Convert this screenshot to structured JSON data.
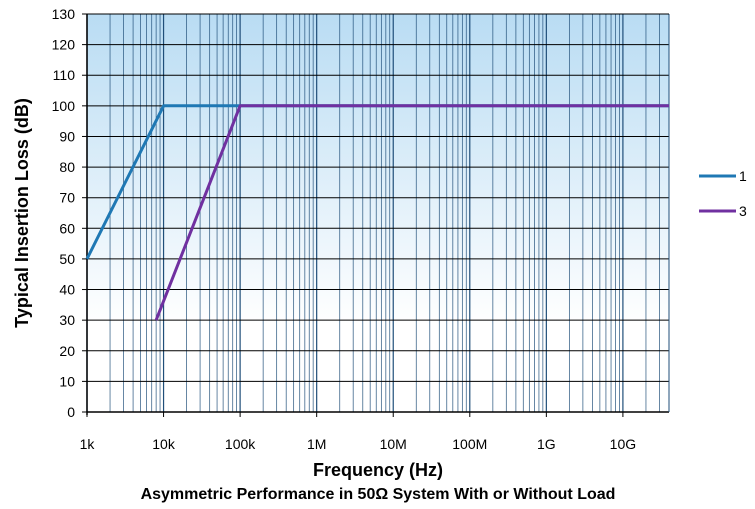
{
  "chart_data": {
    "type": "line",
    "xlabel": "Frequency (Hz)",
    "ylabel": "Typical Insertion Loss (dB)",
    "subtitle": "Asymmetric  Performance in 50Ω System  With or Without Load",
    "x_scale": "log",
    "xlim": [
      1000,
      40000000000
    ],
    "ylim": [
      0,
      130
    ],
    "x_ticks": [
      {
        "value": 1000,
        "label": "1k"
      },
      {
        "value": 10000,
        "label": "10k"
      },
      {
        "value": 100000,
        "label": "100k"
      },
      {
        "value": 1000000,
        "label": "1M"
      },
      {
        "value": 10000000,
        "label": "10M"
      },
      {
        "value": 100000000,
        "label": "100M"
      },
      {
        "value": 1000000000,
        "label": "1G"
      },
      {
        "value": 10000000000,
        "label": "10G"
      }
    ],
    "y_ticks": [
      0,
      10,
      20,
      30,
      40,
      50,
      60,
      70,
      80,
      90,
      100,
      110,
      120,
      130
    ],
    "grid": true,
    "legend_position": "right",
    "colors": {
      "background_top": "#b9dcf3",
      "background_bottom": "#ffffff",
      "grid": "#1f4e79"
    },
    "series": [
      {
        "name": "1",
        "color": "#1f78b4",
        "x": [
          1000,
          10000,
          100000,
          40000000000
        ],
        "y": [
          50,
          100,
          100,
          100
        ]
      },
      {
        "name": "3",
        "color": "#7030a0",
        "x": [
          8000,
          100000,
          40000000000
        ],
        "y": [
          30,
          100,
          100
        ]
      }
    ]
  }
}
